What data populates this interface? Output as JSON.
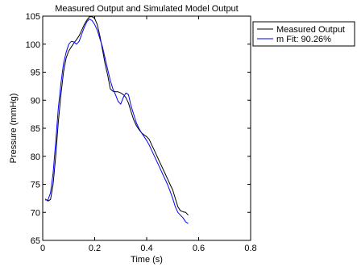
{
  "chart_data": {
    "type": "line",
    "title": "Measured Output and Simulated Model Output",
    "xlabel": "Time (s)",
    "ylabel": "Pressure (mmHg)",
    "xlim": [
      0,
      0.8
    ],
    "ylim": [
      65,
      105
    ],
    "x_ticks": [
      "0",
      "0.2",
      "0.4",
      "0.6",
      "0.8"
    ],
    "y_ticks": [
      "65",
      "70",
      "75",
      "80",
      "85",
      "90",
      "95",
      "100",
      "105"
    ],
    "grid": false,
    "legend_position": "outside-top-right",
    "series": [
      {
        "name": "Measured Output",
        "color": "#000000",
        "x": [
          0.01,
          0.02,
          0.03,
          0.04,
          0.05,
          0.06,
          0.07,
          0.08,
          0.09,
          0.1,
          0.11,
          0.12,
          0.13,
          0.14,
          0.15,
          0.16,
          0.17,
          0.18,
          0.19,
          0.2,
          0.21,
          0.22,
          0.23,
          0.24,
          0.25,
          0.26,
          0.27,
          0.28,
          0.29,
          0.3,
          0.31,
          0.32,
          0.33,
          0.34,
          0.35,
          0.36,
          0.37,
          0.38,
          0.39,
          0.4,
          0.41,
          0.42,
          0.43,
          0.44,
          0.45,
          0.46,
          0.47,
          0.48,
          0.49,
          0.5,
          0.51,
          0.52,
          0.53,
          0.54,
          0.55,
          0.56
        ],
        "y": [
          72.4,
          72.0,
          72.3,
          75.0,
          80.0,
          86.0,
          91.0,
          95.0,
          97.5,
          98.8,
          99.5,
          100.2,
          100.8,
          101.5,
          102.5,
          103.5,
          104.3,
          104.9,
          104.9,
          104.6,
          103.5,
          101.5,
          99.0,
          96.5,
          94.5,
          92.0,
          91.6,
          91.5,
          91.5,
          91.3,
          91.0,
          90.5,
          89.5,
          88.0,
          86.5,
          85.5,
          84.8,
          84.2,
          83.8,
          83.5,
          83.0,
          82.0,
          81.0,
          80.0,
          79.0,
          78.0,
          77.0,
          76.0,
          75.0,
          74.0,
          72.5,
          71.0,
          70.3,
          70.1,
          70.0,
          69.5
        ]
      },
      {
        "name": "m Fit: 90.26%",
        "color": "#0000ff",
        "x": [
          0.01,
          0.02,
          0.03,
          0.04,
          0.05,
          0.06,
          0.07,
          0.08,
          0.09,
          0.1,
          0.11,
          0.12,
          0.13,
          0.14,
          0.15,
          0.16,
          0.17,
          0.18,
          0.19,
          0.2,
          0.21,
          0.22,
          0.23,
          0.24,
          0.25,
          0.26,
          0.27,
          0.28,
          0.29,
          0.3,
          0.31,
          0.32,
          0.33,
          0.34,
          0.35,
          0.36,
          0.37,
          0.38,
          0.39,
          0.4,
          0.41,
          0.42,
          0.43,
          0.44,
          0.45,
          0.46,
          0.47,
          0.48,
          0.49,
          0.5,
          0.51,
          0.52,
          0.53,
          0.54,
          0.55,
          0.56
        ],
        "y": [
          72.2,
          72.2,
          73.5,
          77.0,
          82.5,
          88.5,
          93.0,
          96.5,
          98.5,
          100.0,
          100.5,
          100.4,
          100.0,
          100.5,
          101.8,
          103.0,
          104.0,
          104.5,
          104.2,
          103.5,
          102.5,
          101.0,
          99.5,
          97.5,
          95.5,
          93.5,
          92.0,
          91.0,
          89.8,
          89.3,
          90.5,
          91.3,
          91.0,
          89.0,
          87.5,
          86.0,
          85.0,
          84.2,
          83.5,
          82.8,
          82.0,
          81.0,
          80.0,
          79.0,
          78.0,
          77.0,
          76.0,
          75.0,
          73.8,
          72.5,
          71.0,
          70.0,
          69.5,
          69.0,
          68.3,
          68.0
        ]
      }
    ]
  }
}
